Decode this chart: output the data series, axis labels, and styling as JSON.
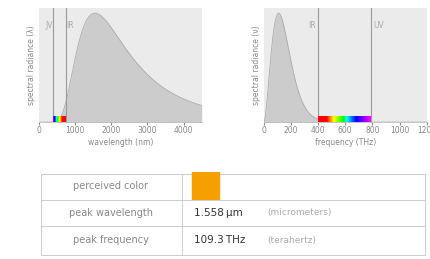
{
  "fig_width": 4.31,
  "fig_height": 2.59,
  "dpi": 100,
  "bg_color": "#ffffff",
  "plot_bg": "#ebebeb",
  "curve_color": "#c8c8c8",
  "curve_fill": "#cccccc",
  "label_color": "#aaaaaa",
  "text_color": "#888888",
  "table_text_color": "#888888",
  "table_value_color": "#333333",
  "table_border_color": "#cccccc",
  "orange_color": "#f5a000",
  "peak_wavelength_nm": 1558,
  "peak_frequency_THz": 109.3,
  "wl_xlim": [
    0,
    4500
  ],
  "wl_xticks": [
    0,
    1000,
    2000,
    3000,
    4000
  ],
  "freq_xlim": [
    0,
    1200
  ],
  "freq_xticks": [
    0,
    200,
    400,
    600,
    800,
    1000,
    1200
  ],
  "ir_wl": 750,
  "uv_wl": 400,
  "ir_freq": 400,
  "uv_freq": 790,
  "xlabel_wl": "wavelength (nm)",
  "xlabel_freq": "frequency (THz)",
  "ylabel_wl": "spectral radiance (λ)",
  "ylabel_freq": "spectral radiance (ν)",
  "label_IR": "IR",
  "label_UV": "UV",
  "label_JV": "JV",
  "row1_label": "perceived color",
  "row2_label": "peak wavelength",
  "row3_label": "peak frequency",
  "row2_value": "1.558",
  "row2_unit": "μm",
  "row2_suffix": "(micrometers)",
  "row3_value": "109.3",
  "row3_unit": "THz",
  "row3_suffix": "(terahertz)"
}
